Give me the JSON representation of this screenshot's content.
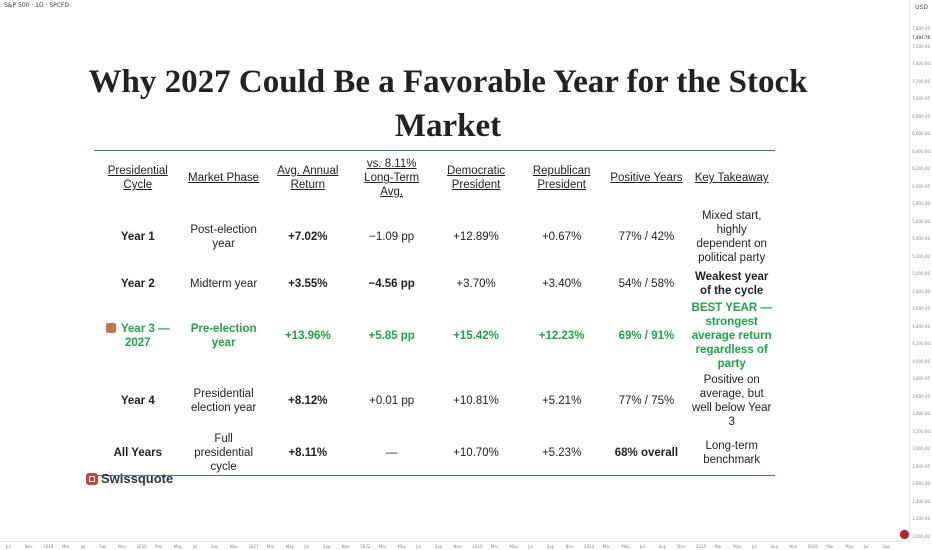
{
  "chart_header": "S&P 500 · 1D · SPCFD",
  "currency": "USD",
  "price_tag": "7,491.76",
  "y_axis_ticks": [
    "7,800.00",
    "7,600.00",
    "7,400.00",
    "7,200.00",
    "7,000.00",
    "6,800.00",
    "6,600.00",
    "6,400.00",
    "6,200.00",
    "6,000.00",
    "5,800.00",
    "5,600.00",
    "5,400.00",
    "5,200.00",
    "5,000.00",
    "4,800.00",
    "4,600.00",
    "4,400.00",
    "4,200.00",
    "4,000.00",
    "3,800.00",
    "3,600.00",
    "3,400.00",
    "3,200.00",
    "3,000.00",
    "2,800.00",
    "2,600.00",
    "2,400.00",
    "2,200.00",
    "2,000.00"
  ],
  "x_axis_ticks": [
    "Jul",
    "Nov",
    "2019",
    "Mar",
    "Jul",
    "Sep",
    "Nov",
    "2020",
    "Mar",
    "May",
    "Jul",
    "Sep",
    "Nov",
    "2021",
    "Mar",
    "May",
    "Jul",
    "Sep",
    "Nov",
    "2022",
    "Mar",
    "May",
    "Jul",
    "Sep",
    "Nov",
    "2023",
    "Mar",
    "May",
    "Jul",
    "Sep",
    "Nov",
    "2024",
    "Mar",
    "May",
    "Jul",
    "Sep",
    "Nov",
    "2025",
    "Mar",
    "May",
    "Jul",
    "Sep",
    "Nov",
    "2026",
    "Mar",
    "May",
    "Jul",
    "Sep"
  ],
  "title": "Why 2027 Could Be a Favorable Year for the Stock Market",
  "table": {
    "headers": [
      "Presidential Cycle",
      "Market Phase",
      "Avg. Annual Return",
      "vs. 8.11% Long-Term Avg.",
      "Democratic President",
      "Republican President",
      "Positive Years",
      "Key Takeaway"
    ],
    "rows": [
      [
        "Year 1",
        "Post-election year",
        "+7.02%",
        "−1.09 pp",
        "+12.89%",
        "+0.67%",
        "77% / 42%",
        "Mixed start, highly dependent on political party"
      ],
      [
        "Year 2",
        "Midterm year",
        "+3.55%",
        "−4.56 pp",
        "+3.70%",
        "+3.40%",
        "54% / 58%",
        "Weakest year of the cycle"
      ],
      [
        "Year 3 — 2027",
        "Pre-election year",
        "+13.96%",
        "+5.85 pp",
        "+15.42%",
        "+12.23%",
        "69% / 91%",
        "BEST YEAR — strongest average return regardless of party"
      ],
      [
        "Year 4",
        "Presidential election year",
        "+8.12%",
        "+0.01 pp",
        "+10.81%",
        "+5.21%",
        "77% / 75%",
        "Positive on average, but well below Year 3"
      ],
      [
        "All Years",
        "Full presidential cycle",
        "+8.11%",
        "—",
        "+10.70%",
        "+5.23%",
        "68% overall",
        "Long-term benchmark"
      ]
    ]
  },
  "brand": "Swissquote",
  "colors": {
    "highlight": "#1fa34a",
    "rule": "#4a6fb0",
    "brand_mark": "#c0463c"
  }
}
